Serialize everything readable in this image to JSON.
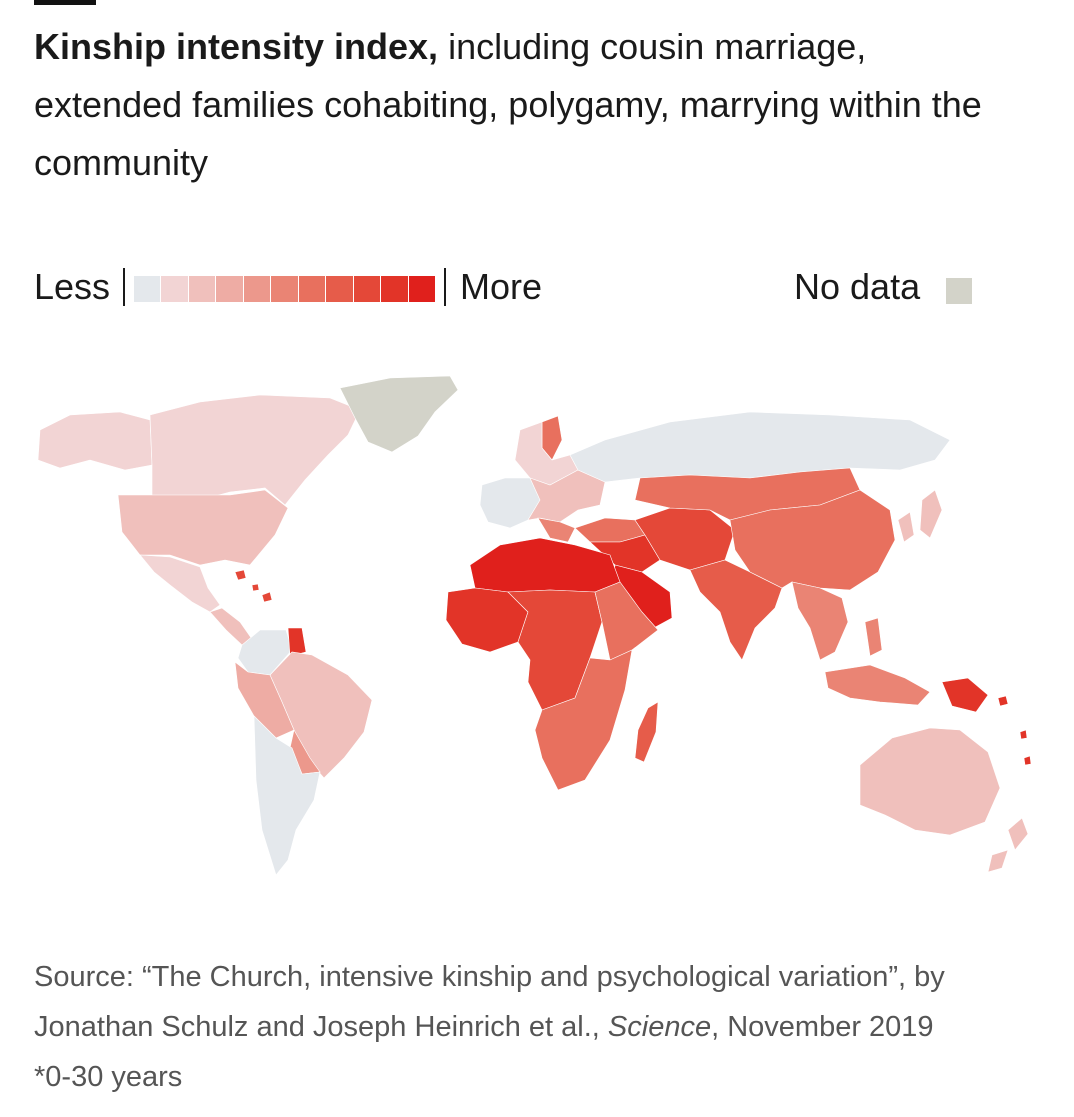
{
  "title": {
    "bold": "Kinship intensity index,",
    "rest": " including cousin marriage, extended families cohabiting, polygamy, marrying within the community"
  },
  "legend": {
    "less_label": "Less",
    "more_label": "More",
    "no_data_label": "No data",
    "scale_colors": [
      "#e4e8ec",
      "#f2d4d4",
      "#f0c0bc",
      "#eeaca4",
      "#ec988c",
      "#ea8474",
      "#e8705e",
      "#e65c4a",
      "#e44838",
      "#e23428",
      "#e0201c"
    ],
    "no_data_color": "#d3d3c9"
  },
  "map": {
    "regions": [
      {
        "name": "Greenland",
        "level": "no-data"
      },
      {
        "name": "Canada",
        "level": 1
      },
      {
        "name": "Alaska",
        "level": 1
      },
      {
        "name": "United States",
        "level": 2
      },
      {
        "name": "Mexico",
        "level": 1
      },
      {
        "name": "Central America",
        "level": 2
      },
      {
        "name": "Caribbean",
        "level": 8
      },
      {
        "name": "Colombia & Venezuela",
        "level": 0
      },
      {
        "name": "Guyana & Suriname",
        "level": 9
      },
      {
        "name": "Brazil",
        "level": 2
      },
      {
        "name": "Peru & Bolivia",
        "level": 3
      },
      {
        "name": "Paraguay",
        "level": 4
      },
      {
        "name": "Argentina & Chile",
        "level": 0
      },
      {
        "name": "Northern Europe",
        "level": 1
      },
      {
        "name": "Norway",
        "level": 6
      },
      {
        "name": "Western Europe",
        "level": 0
      },
      {
        "name": "Southern & Eastern Europe",
        "level": 2
      },
      {
        "name": "Balkans",
        "level": 5
      },
      {
        "name": "Russia",
        "level": 0
      },
      {
        "name": "Turkey & Caucasus",
        "level": 6
      },
      {
        "name": "Middle East",
        "level": 9
      },
      {
        "name": "Arabian Peninsula",
        "level": 10
      },
      {
        "name": "Iran & Central Asia",
        "level": 8
      },
      {
        "name": "North Africa",
        "level": 10
      },
      {
        "name": "West Africa",
        "level": 9
      },
      {
        "name": "Central Africa",
        "level": 8
      },
      {
        "name": "Horn of Africa",
        "level": 6
      },
      {
        "name": "Southern Africa",
        "level": 6
      },
      {
        "name": "Madagascar",
        "level": 7
      },
      {
        "name": "Kazakhstan & Mongolia",
        "level": 6
      },
      {
        "name": "China",
        "level": 6
      },
      {
        "name": "South Asia",
        "level": 7
      },
      {
        "name": "Mainland Southeast Asia",
        "level": 5
      },
      {
        "name": "Korea & Japan",
        "level": 2
      },
      {
        "name": "Indonesia & Philippines",
        "level": 5
      },
      {
        "name": "Papua New Guinea",
        "level": 9
      },
      {
        "name": "Pacific islands",
        "level": 9
      },
      {
        "name": "Australia",
        "level": 2
      },
      {
        "name": "New Zealand",
        "level": 2
      }
    ]
  },
  "source": {
    "line1": "Source: “The Church, intensive kinship and psychological variation”, by",
    "line2_pre": "Jonathan Schulz and Joseph Heinrich et al., ",
    "line2_italic": "Science",
    "line2_post": ", November 2019",
    "line3": "*0-30 years"
  }
}
